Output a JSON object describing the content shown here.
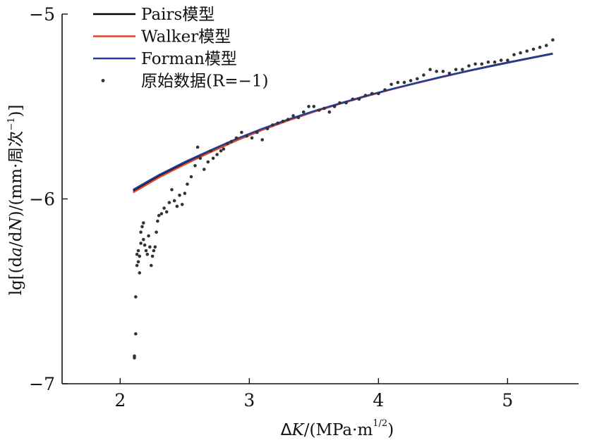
{
  "chart_data": {
    "type": "line",
    "title": "",
    "xlabel": "ΔK/(MPa·m^(1/2))",
    "ylabel": "lg[(da/dN)/(mm·周次⁻¹)]",
    "xlim": [
      1.55,
      5.55
    ],
    "ylim": [
      -7,
      -5
    ],
    "x_ticks": [
      2,
      3,
      4,
      5
    ],
    "y_ticks": [
      -5,
      -6,
      -7
    ],
    "x_tick_labels": [
      "2",
      "3",
      "4",
      "5"
    ],
    "y_tick_labels": [
      "−5",
      "−6",
      "−7"
    ],
    "grid": false,
    "legend": "top-left",
    "series": [
      {
        "name": "Pairs模型",
        "kind": "line",
        "color": "#000000",
        "x": [
          2.1,
          2.3,
          2.5,
          2.7,
          2.9,
          3.1,
          3.3,
          3.5,
          3.7,
          3.9,
          4.1,
          4.3,
          4.5,
          4.7,
          4.9,
          5.1,
          5.35
        ],
        "values": [
          -5.955,
          -5.875,
          -5.805,
          -5.74,
          -5.678,
          -5.622,
          -5.572,
          -5.526,
          -5.484,
          -5.444,
          -5.406,
          -5.371,
          -5.338,
          -5.306,
          -5.276,
          -5.248,
          -5.213
        ]
      },
      {
        "name": "Walker模型",
        "kind": "line",
        "color": "#d9442b",
        "x": [
          2.1,
          2.3,
          2.5,
          2.7,
          2.9,
          3.1,
          3.3,
          3.5,
          3.7,
          3.9,
          4.1,
          4.3,
          4.5,
          4.7,
          4.9,
          5.1,
          5.35
        ],
        "values": [
          -5.965,
          -5.884,
          -5.813,
          -5.747,
          -5.684,
          -5.627,
          -5.576,
          -5.529,
          -5.486,
          -5.446,
          -5.408,
          -5.373,
          -5.34,
          -5.308,
          -5.278,
          -5.25,
          -5.215
        ]
      },
      {
        "name": "Forman模型",
        "kind": "line",
        "color": "#1f3f9c",
        "x": [
          2.1,
          2.3,
          2.5,
          2.7,
          2.9,
          3.1,
          3.3,
          3.5,
          3.7,
          3.9,
          4.1,
          4.3,
          4.5,
          4.7,
          4.9,
          5.1,
          5.35
        ],
        "values": [
          -5.95,
          -5.87,
          -5.8,
          -5.736,
          -5.675,
          -5.62,
          -5.57,
          -5.525,
          -5.483,
          -5.443,
          -5.406,
          -5.371,
          -5.338,
          -5.307,
          -5.278,
          -5.249,
          -5.215
        ]
      },
      {
        "name": "原始数据(R=−1)",
        "kind": "scatter",
        "color": "#333333",
        "x": [
          2.11,
          2.11,
          2.12,
          2.12,
          2.13,
          2.13,
          2.14,
          2.14,
          2.15,
          2.15,
          2.16,
          2.16,
          2.17,
          2.18,
          2.18,
          2.19,
          2.2,
          2.21,
          2.22,
          2.23,
          2.24,
          2.25,
          2.26,
          2.27,
          2.28,
          2.29,
          2.3,
          2.32,
          2.34,
          2.36,
          2.38,
          2.4,
          2.42,
          2.44,
          2.46,
          2.48,
          2.5,
          2.52,
          2.55,
          2.58,
          2.6,
          2.62,
          2.65,
          2.68,
          2.7,
          2.72,
          2.75,
          2.78,
          2.8,
          2.83,
          2.86,
          2.9,
          2.94,
          2.98,
          3.02,
          3.06,
          3.1,
          3.14,
          3.18,
          3.22,
          3.26,
          3.3,
          3.34,
          3.38,
          3.42,
          3.46,
          3.5,
          3.54,
          3.58,
          3.62,
          3.66,
          3.7,
          3.75,
          3.8,
          3.85,
          3.9,
          3.95,
          4.0,
          4.05,
          4.1,
          4.15,
          4.2,
          4.25,
          4.3,
          4.35,
          4.4,
          4.45,
          4.5,
          4.55,
          4.6,
          4.65,
          4.7,
          4.75,
          4.8,
          4.85,
          4.9,
          4.95,
          5.0,
          5.05,
          5.1,
          5.15,
          5.2,
          5.25,
          5.3,
          5.35
        ],
        "values": [
          -6.86,
          -6.85,
          -6.73,
          -6.53,
          -6.36,
          -6.3,
          -6.34,
          -6.28,
          -6.4,
          -6.31,
          -6.24,
          -6.18,
          -6.15,
          -6.22,
          -6.13,
          -6.25,
          -6.28,
          -6.3,
          -6.2,
          -6.26,
          -6.36,
          -6.31,
          -6.28,
          -6.26,
          -6.18,
          -6.12,
          -6.09,
          -6.08,
          -6.05,
          -6.07,
          -6.02,
          -5.95,
          -6.01,
          -6.04,
          -5.98,
          -6.03,
          -5.97,
          -5.92,
          -5.88,
          -5.82,
          -5.72,
          -5.78,
          -5.84,
          -5.8,
          -5.74,
          -5.78,
          -5.76,
          -5.74,
          -5.73,
          -5.7,
          -5.69,
          -5.67,
          -5.64,
          -5.66,
          -5.67,
          -5.64,
          -5.68,
          -5.62,
          -5.6,
          -5.59,
          -5.58,
          -5.57,
          -5.55,
          -5.56,
          -5.53,
          -5.5,
          -5.5,
          -5.52,
          -5.51,
          -5.53,
          -5.5,
          -5.48,
          -5.48,
          -5.46,
          -5.46,
          -5.44,
          -5.43,
          -5.43,
          -5.41,
          -5.38,
          -5.37,
          -5.37,
          -5.36,
          -5.35,
          -5.33,
          -5.3,
          -5.31,
          -5.31,
          -5.32,
          -5.3,
          -5.3,
          -5.28,
          -5.27,
          -5.27,
          -5.26,
          -5.26,
          -5.25,
          -5.25,
          -5.22,
          -5.21,
          -5.2,
          -5.19,
          -5.18,
          -5.17,
          -5.14
        ]
      }
    ]
  }
}
